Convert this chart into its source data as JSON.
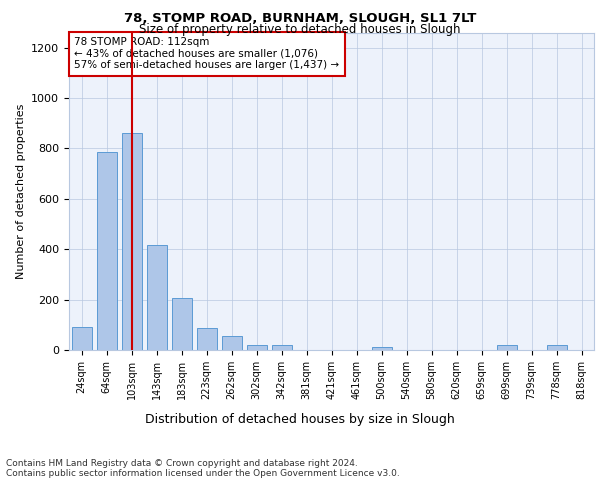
{
  "title1": "78, STOMP ROAD, BURNHAM, SLOUGH, SL1 7LT",
  "title2": "Size of property relative to detached houses in Slough",
  "xlabel": "Distribution of detached houses by size in Slough",
  "ylabel": "Number of detached properties",
  "categories": [
    "24sqm",
    "64sqm",
    "103sqm",
    "143sqm",
    "183sqm",
    "223sqm",
    "262sqm",
    "302sqm",
    "342sqm",
    "381sqm",
    "421sqm",
    "461sqm",
    "500sqm",
    "540sqm",
    "580sqm",
    "620sqm",
    "659sqm",
    "699sqm",
    "739sqm",
    "778sqm",
    "818sqm"
  ],
  "values": [
    90,
    785,
    860,
    418,
    207,
    88,
    56,
    18,
    18,
    0,
    0,
    0,
    10,
    0,
    0,
    0,
    0,
    18,
    0,
    18,
    0
  ],
  "bar_color": "#aec6e8",
  "bar_edge_color": "#5b9bd5",
  "vline_color": "#cc0000",
  "annotation_text": "78 STOMP ROAD: 112sqm\n← 43% of detached houses are smaller (1,076)\n57% of semi-detached houses are larger (1,437) →",
  "annotation_box_color": "#ffffff",
  "annotation_box_edge": "#cc0000",
  "ylim": [
    0,
    1260
  ],
  "yticks": [
    0,
    200,
    400,
    600,
    800,
    1000,
    1200
  ],
  "footnote1": "Contains HM Land Registry data © Crown copyright and database right 2024.",
  "footnote2": "Contains public sector information licensed under the Open Government Licence v3.0.",
  "plot_bg": "#edf2fb"
}
